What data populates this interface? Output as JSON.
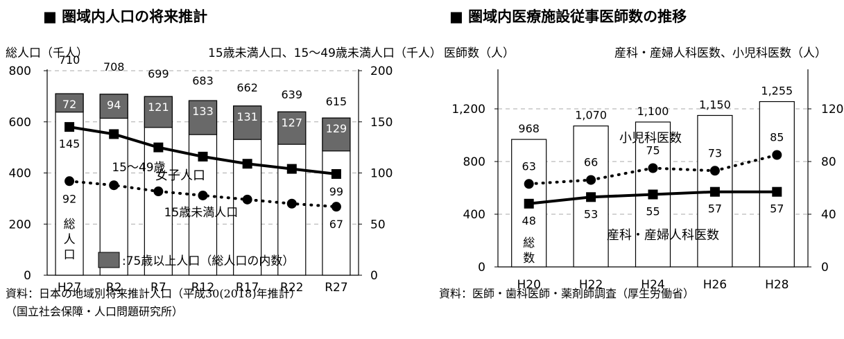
{
  "left": {
    "title": "■ 圏域内人口の将来推計",
    "source_line1": "資料：日本の地域別将来推計人口（平成30(2018)年推計）",
    "source_line2": "（国立社会保障・人口問題研究所）"
  },
  "right": {
    "title": "■ 圏域内医療施設従事医師数の推移",
    "source": "資料：医師・歯科医師・薬剤師調査（厚生労働省）"
  },
  "chart_data": [
    {
      "type": "bar",
      "subtype": "bar+line, dual axis",
      "title": "圏域内人口の将来推計",
      "y_left_label": "総人口（千人）",
      "y_right_label": "15歳未満人口、15〜49歳未満人口（千人）",
      "ylim_left": [
        0,
        800
      ],
      "ylim_right": [
        0,
        200
      ],
      "y_left_ticks": [
        "0",
        "200",
        "400",
        "600",
        "800"
      ],
      "y_right_ticks": [
        "0",
        "50",
        "100",
        "150",
        "200"
      ],
      "grid": true,
      "categories": [
        "H27",
        "R2",
        "R7",
        "R12",
        "R17",
        "R22",
        "R27"
      ],
      "series": [
        {
          "name": "総人口",
          "axis": "left",
          "kind": "bar",
          "values": [
            710,
            708,
            699,
            683,
            662,
            639,
            615
          ]
        },
        {
          "name": "75歳以上人口（総人口の内数）",
          "axis": "left",
          "kind": "stacked-top",
          "values": [
            72,
            94,
            121,
            133,
            131,
            127,
            129
          ]
        },
        {
          "name": "15〜49歳女子人口",
          "axis": "right",
          "kind": "line-solid",
          "values": [
            145,
            138,
            125,
            116,
            109,
            104,
            99
          ]
        },
        {
          "name": "15歳未満人口",
          "axis": "right",
          "kind": "line-dotted",
          "values": [
            92,
            88,
            82,
            78,
            74,
            70,
            67
          ]
        }
      ],
      "labels": {
        "total_vertical": [
          "総",
          "人",
          "口"
        ],
        "female_line_a": "15〜49歳",
        "female_line_b": "女子人口",
        "under15_line": "15歳未満人口",
        "legend": ":75歳以上人口（総人口の内数）"
      },
      "shown_line_labels": {
        "female": [
          {
            "index": 0,
            "text": "145"
          },
          {
            "index": 6,
            "text": "99"
          }
        ],
        "under15": [
          {
            "index": 0,
            "text": "92"
          },
          {
            "index": 6,
            "text": "67"
          }
        ]
      }
    },
    {
      "type": "bar",
      "subtype": "bar+line, dual axis",
      "title": "圏域内医療施設従事医師数の推移",
      "y_left_label": "医師数（人）",
      "y_right_label": "産科・産婦人科医数、小児科医数（人）",
      "ylim_left": [
        0,
        1500
      ],
      "ylim_right": [
        0,
        150
      ],
      "y_left_ticks": [
        "0",
        "400",
        "800",
        "1,200"
      ],
      "y_right_ticks": [
        "0",
        "40",
        "80",
        "120"
      ],
      "grid": true,
      "categories": [
        "H20",
        "H22",
        "H24",
        "H26",
        "H28"
      ],
      "series": [
        {
          "name": "総数",
          "axis": "left",
          "kind": "bar",
          "values": [
            968,
            1070,
            1100,
            1150,
            1255
          ],
          "display": [
            "968",
            "1,070",
            "1,100",
            "1,150",
            "1,255"
          ]
        },
        {
          "name": "小児科医数",
          "axis": "right",
          "kind": "line-dotted",
          "values": [
            63,
            66,
            75,
            73,
            85
          ]
        },
        {
          "name": "産科・産婦人科医数",
          "axis": "right",
          "kind": "line-solid",
          "values": [
            48,
            53,
            55,
            57,
            57
          ]
        }
      ],
      "labels": {
        "total_vertical": [
          "総",
          "数"
        ],
        "pediatric": "小児科医数",
        "obstetric": "産科・産婦人科医数"
      }
    }
  ]
}
